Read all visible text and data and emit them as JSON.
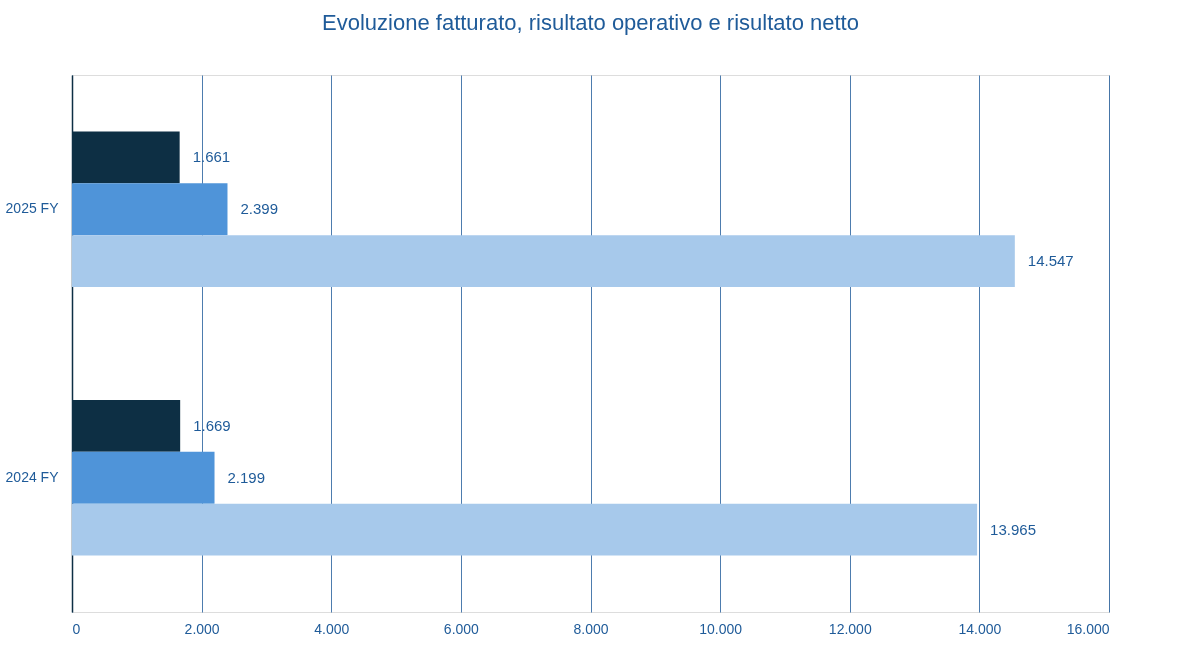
{
  "chart_data": {
    "type": "bar",
    "orientation": "horizontal",
    "title": "Evoluzione fatturato, risultato operativo e risultato netto",
    "categories": [
      "2025 FY",
      "2024 FY"
    ],
    "series": [
      {
        "color": "#0d2f44",
        "values": [
          1661,
          1669
        ],
        "value_labels": [
          "1.661",
          "1.669"
        ]
      },
      {
        "color": "#4f94d9",
        "values": [
          2399,
          2199
        ],
        "value_labels": [
          "2.399",
          "2.199"
        ]
      },
      {
        "color": "#a7c9eb",
        "values": [
          14547,
          13965
        ],
        "value_labels": [
          "14.547",
          "13.965"
        ]
      }
    ],
    "xlim": [
      0,
      16000
    ],
    "xticks": [
      0,
      {
        "value": 2000,
        "label": "2.000"
      },
      {
        "value": 4000,
        "label": "4.000"
      },
      {
        "value": 6000,
        "label": "6.000"
      },
      {
        "value": 8000,
        "label": "8.000"
      },
      {
        "value": 10000,
        "label": "10.000"
      },
      {
        "value": 12000,
        "label": "12.000"
      },
      {
        "value": 14000,
        "label": "14.000"
      },
      {
        "value": 16000,
        "label": "16.000"
      }
    ],
    "grid": "x"
  }
}
